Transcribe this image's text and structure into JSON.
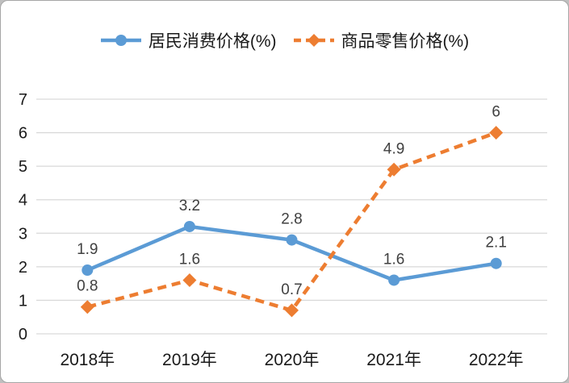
{
  "frame": {
    "background": "#FFFFFF",
    "border_color": "#A6A6A6"
  },
  "chart_data": {
    "type": "line",
    "title": "",
    "categories": [
      "2018年",
      "2019年",
      "2020年",
      "2021年",
      "2022年"
    ],
    "series": [
      {
        "name": "居民消费价格(%)",
        "values": [
          1.9,
          3.2,
          2.8,
          1.6,
          2.1
        ],
        "labels": [
          "1.9",
          "3.2",
          "2.8",
          "1.6",
          "2.1"
        ],
        "color": "#5B9BD5",
        "line_style": "solid",
        "marker": "circle"
      },
      {
        "name": "商品零售价格(%)",
        "values": [
          0.8,
          1.6,
          0.7,
          4.9,
          6
        ],
        "labels": [
          "0.8",
          "1.6",
          "0.7",
          "4.9",
          "6"
        ],
        "color": "#ED7D31",
        "line_style": "dashed",
        "marker": "diamond"
      }
    ],
    "ylim": [
      0,
      7
    ],
    "yticks": [
      0,
      1,
      2,
      3,
      4,
      5,
      6,
      7
    ],
    "grid": "horizontal",
    "gridline_color": "#D9D9D9",
    "axis_text_color": "#1A1A1A",
    "data_label_color": "#404040",
    "legend_position": "top",
    "data_labels": true
  }
}
